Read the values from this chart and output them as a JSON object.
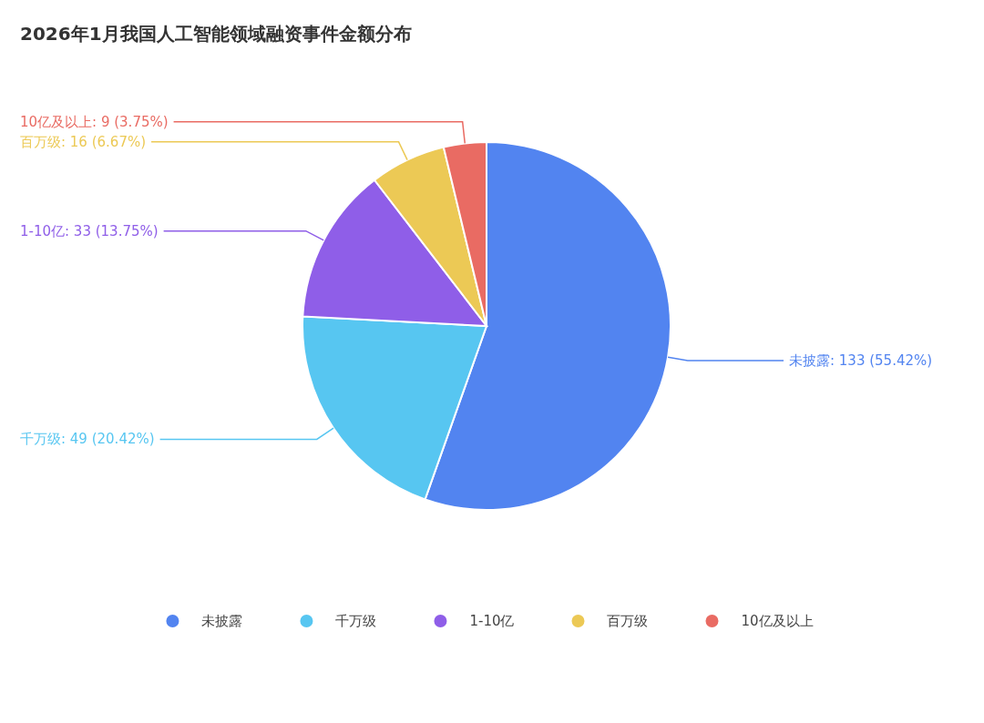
{
  "chart_data": {
    "type": "pie",
    "title": "2026年1月我国人工智能领域融资事件金额分布",
    "categories": [
      "未披露",
      "千万级",
      "1-10亿",
      "百万级",
      "10亿及以上"
    ],
    "values": [
      133,
      49,
      33,
      16,
      9
    ],
    "value_labels": [
      "未披露: 133 (55.42%)",
      "千万级: 49 (20.42%)",
      "1-10亿: 33 (13.75%)",
      "百万级: 16 (6.67%)",
      "10亿及以上: 9 (3.75%)"
    ],
    "colors": [
      "#5284f0",
      "#57c6f1",
      "#8f5ee8",
      "#ecc955",
      "#e96b63"
    ],
    "legend": "bottom"
  }
}
